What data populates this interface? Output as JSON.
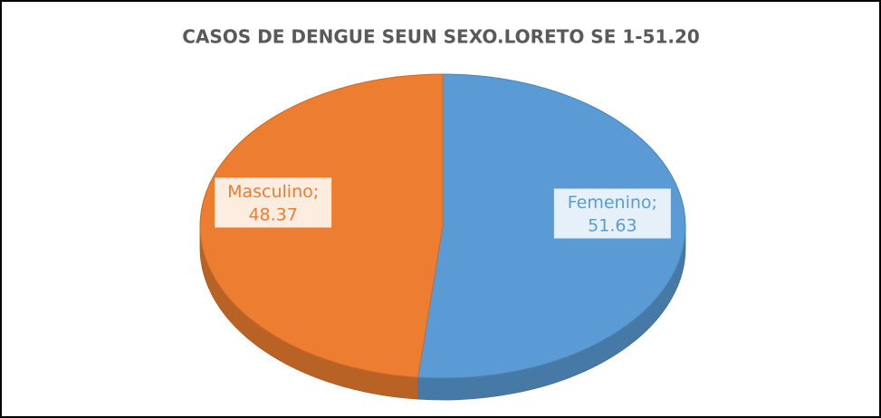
{
  "chart_data": {
    "type": "pie",
    "title": "CASOS DE DENGUE SEUN SEXO.LORETO SE 1-51.20",
    "categories": [
      "Femenino",
      "Masculino"
    ],
    "values": [
      51.63,
      48.37
    ],
    "colors": [
      "#5b9bd5",
      "#ed7d31"
    ],
    "label_separator": ";"
  }
}
